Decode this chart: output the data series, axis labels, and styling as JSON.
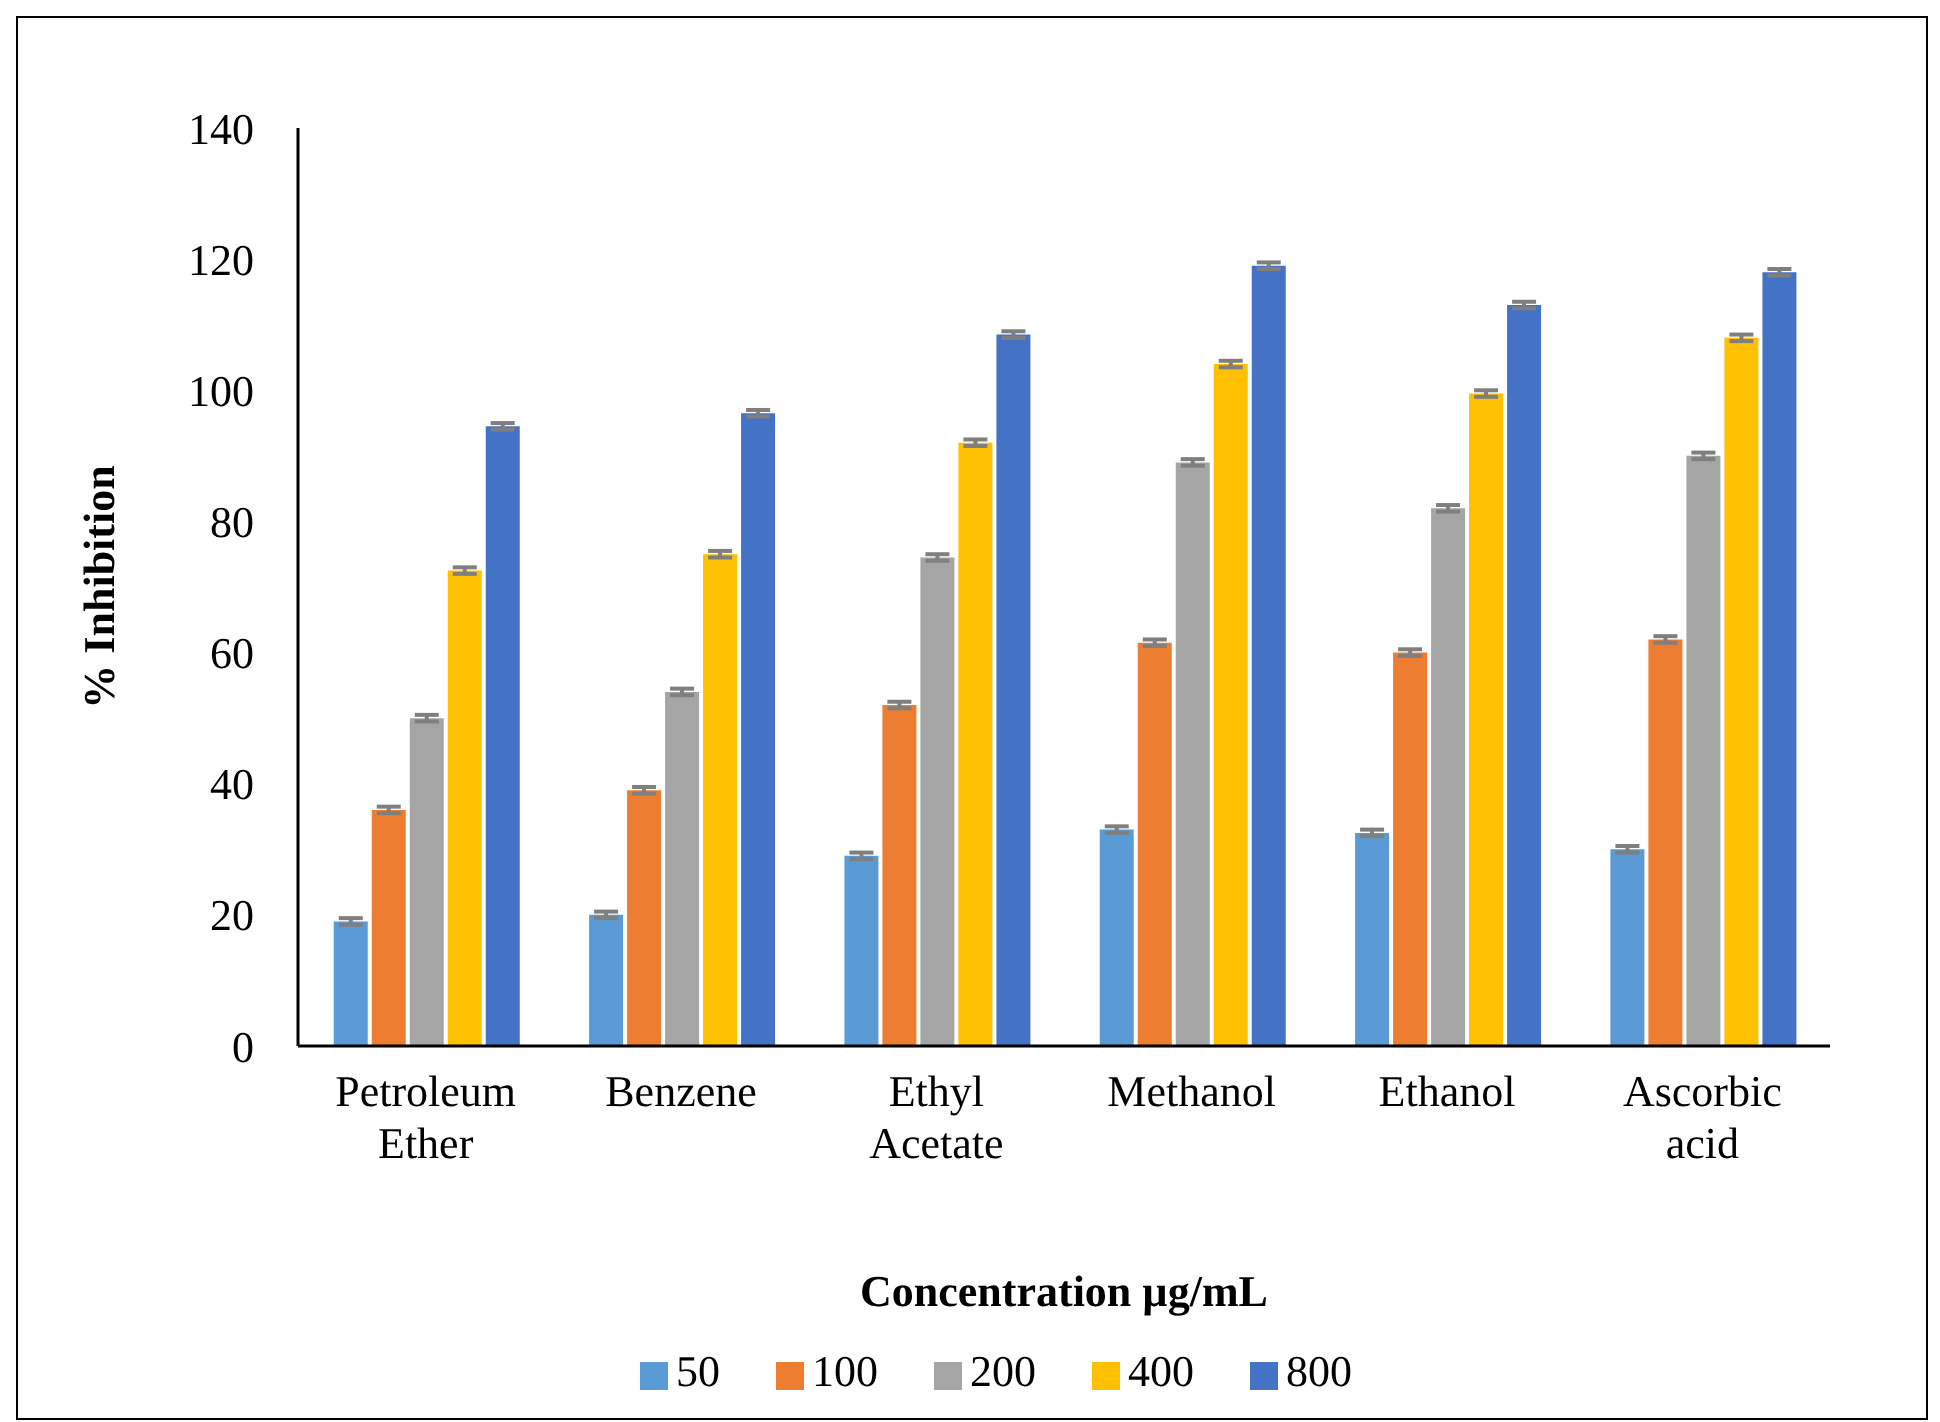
{
  "chart_data": {
    "type": "bar",
    "xlabel": "Concentration µg/mL",
    "ylabel": "% Inhibition",
    "categories": [
      "Petroleum Ether",
      "Benzene",
      "Ethyl Acetate",
      "Methanol",
      "Ethanol",
      "Ascorbic acid"
    ],
    "series": [
      {
        "name": "50",
        "color": "#5b9bd5",
        "values": [
          19,
          20,
          29,
          33,
          32.5,
          30
        ],
        "errors": [
          0.5,
          0.5,
          0.5,
          0.5,
          0.5,
          0.5
        ]
      },
      {
        "name": "100",
        "color": "#ed7d31",
        "values": [
          36,
          39,
          52,
          61.5,
          60,
          62
        ],
        "errors": [
          0.5,
          0.5,
          0.5,
          0.5,
          0.5,
          0.5
        ]
      },
      {
        "name": "200",
        "color": "#a5a5a5",
        "values": [
          50,
          54,
          74.5,
          89,
          82,
          90
        ],
        "errors": [
          0.5,
          0.5,
          0.5,
          0.5,
          0.5,
          0.5
        ]
      },
      {
        "name": "400",
        "color": "#ffc000",
        "values": [
          72.5,
          75,
          92,
          104,
          99.5,
          108
        ],
        "errors": [
          0.5,
          0.5,
          0.5,
          0.5,
          0.5,
          0.5
        ]
      },
      {
        "name": "800",
        "color": "#4472c4",
        "values": [
          94.5,
          96.5,
          108.5,
          119,
          113,
          118
        ],
        "errors": [
          0.5,
          0.5,
          0.5,
          0.5,
          0.5,
          0.5
        ]
      }
    ],
    "ylim": [
      0,
      140
    ],
    "yticks": [
      0,
      20,
      40,
      60,
      80,
      100,
      120,
      140
    ],
    "grid": false,
    "legend": "bottom"
  }
}
